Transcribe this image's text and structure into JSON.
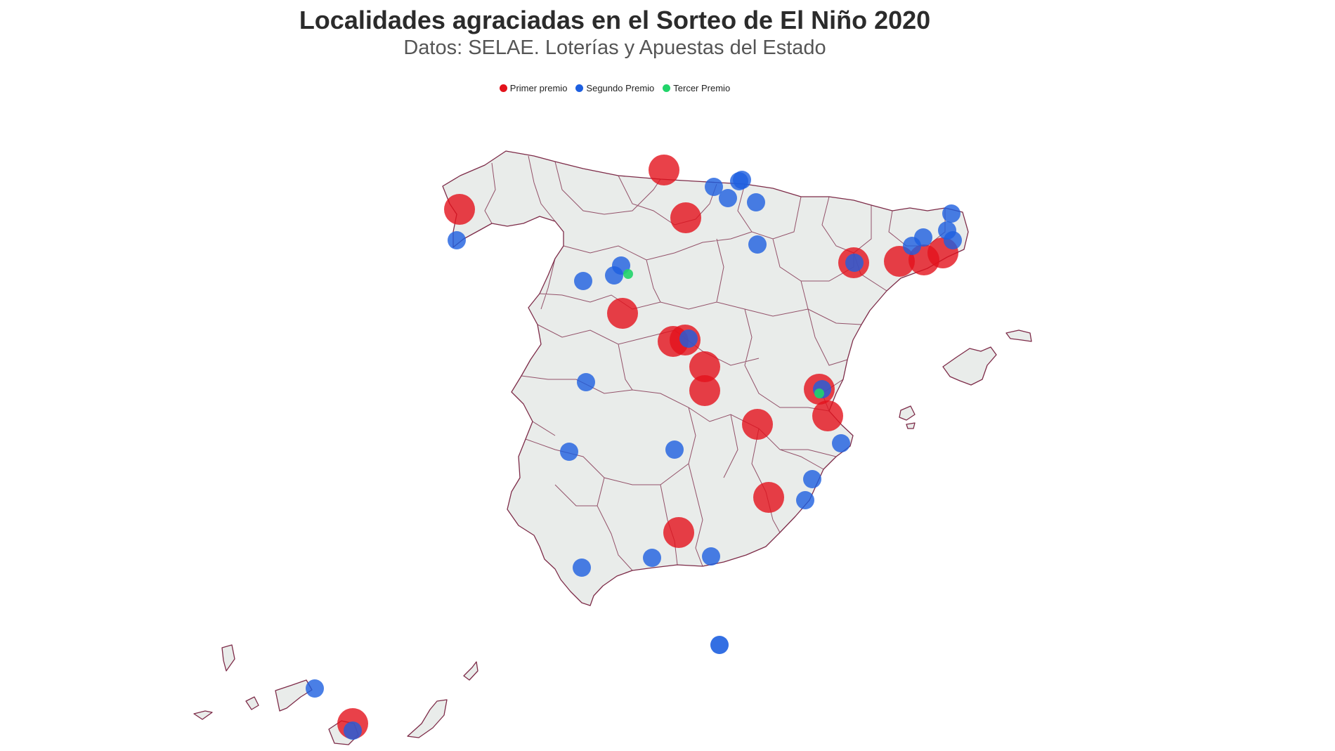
{
  "title": "Localidades agraciadas en el Sorteo de El Niño 2020",
  "subtitle": "Datos: SELAE. Loterías y Apuestas del Estado",
  "legend": [
    {
      "label": "Primer premio",
      "color": "#e3121b"
    },
    {
      "label": "Segundo Premio",
      "color": "#1d5fe0"
    },
    {
      "label": "Tercer Premio",
      "color": "#21d46a"
    }
  ],
  "colors": {
    "land": "#e9ecea",
    "border": "#7d2b48",
    "primer": "#e3121b",
    "segundo": "#1d5fe0",
    "tercer": "#21d46a"
  }
}
